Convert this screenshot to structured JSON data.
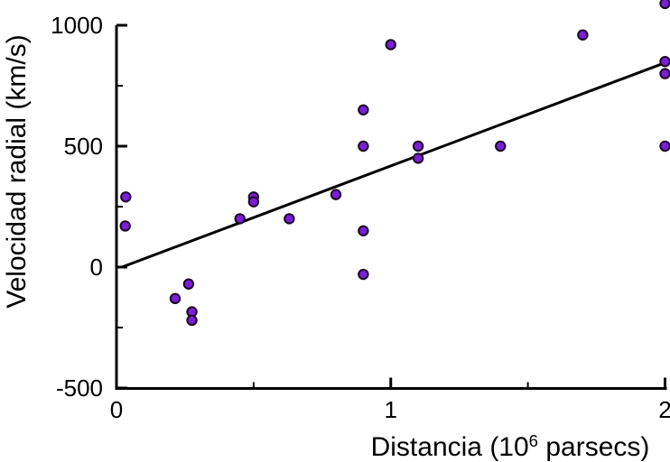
{
  "figure": {
    "background": "#ffffff"
  },
  "chart_data": {
    "type": "scatter",
    "title": "",
    "xlabel": "Distancia (10^6 parsecs)",
    "xlabel_parts": {
      "prefix": "Distancia (10",
      "superscript": "6",
      "suffix": " parsecs)"
    },
    "ylabel": "Velocidad radial (km/s)",
    "xlim": [
      0,
      2
    ],
    "ylim": [
      -500,
      1000
    ],
    "x_major_ticks": [
      0,
      1,
      2
    ],
    "x_minor_ticks": [
      0.5,
      1.5
    ],
    "y_major_ticks": [
      -500,
      0,
      500,
      1000
    ],
    "y_minor_ticks": [
      -250,
      250,
      750
    ],
    "grid": false,
    "legend": null,
    "points": [
      [
        0.032,
        170
      ],
      [
        0.034,
        290
      ],
      [
        0.214,
        -130
      ],
      [
        0.263,
        -70
      ],
      [
        0.275,
        -185
      ],
      [
        0.275,
        -220
      ],
      [
        0.45,
        200
      ],
      [
        0.5,
        290
      ],
      [
        0.5,
        270
      ],
      [
        0.63,
        200
      ],
      [
        0.8,
        300
      ],
      [
        0.9,
        -30
      ],
      [
        0.9,
        150
      ],
      [
        0.9,
        500
      ],
      [
        0.9,
        650
      ],
      [
        1.0,
        920
      ],
      [
        1.1,
        450
      ],
      [
        1.1,
        500
      ],
      [
        1.4,
        500
      ],
      [
        1.7,
        960
      ],
      [
        2.0,
        500
      ],
      [
        2.0,
        800
      ],
      [
        2.0,
        850
      ],
      [
        2.0,
        1090
      ]
    ],
    "trend_line": {
      "x1": 0.02,
      "y1": 0,
      "x2": 2.0,
      "y2": 845
    },
    "colors": {
      "point_fill": "#7a1fd6",
      "point_stroke": "#1c0526",
      "axis": "#000000",
      "trend_line": "#000000",
      "text": "#000000"
    }
  }
}
